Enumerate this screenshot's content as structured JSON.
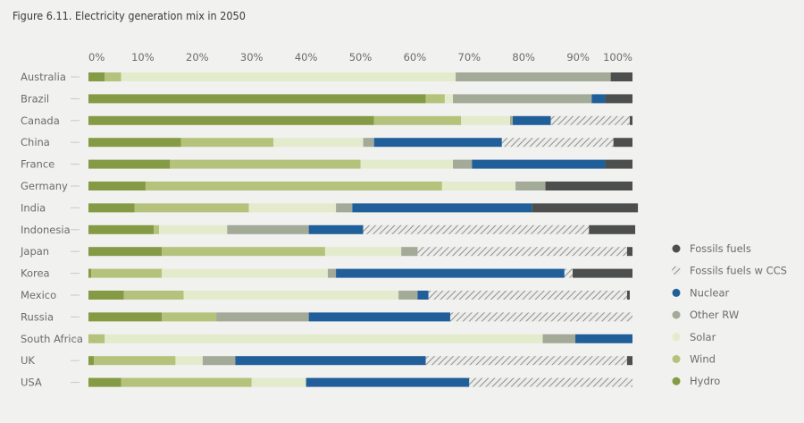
{
  "figure_title": "Figure 6.11. Electricity generation mix in 2050",
  "chart_data": {
    "type": "bar",
    "orientation": "horizontal",
    "stacked": true,
    "title": "Figure 6.11. Electricity generation mix in 2050",
    "xlabel": "",
    "ylabel": "",
    "xlim": [
      0,
      100
    ],
    "x_ticks": [
      "0%",
      "10%",
      "20%",
      "30%",
      "40%",
      "50%",
      "60%",
      "70%",
      "80%",
      "90%",
      "100%"
    ],
    "grid": false,
    "legend_position": "right",
    "categories": [
      "Australia",
      "Brazil",
      "Canada",
      "China",
      "France",
      "Germany",
      "India",
      "Indonesia",
      "Japan",
      "Korea",
      "Mexico",
      "Russia",
      "South Africa",
      "UK",
      "USA"
    ],
    "series": [
      {
        "name": "Hydro",
        "color": "#859a45",
        "values": [
          3,
          62,
          52.5,
          17,
          15,
          10.5,
          8.5,
          12,
          13.5,
          0.5,
          6.5,
          13.5,
          0,
          1,
          6
        ]
      },
      {
        "name": "Wind",
        "color": "#b4c27b",
        "values": [
          3,
          3.5,
          16,
          17,
          35,
          54.5,
          21,
          1,
          30,
          13,
          11,
          10,
          3,
          15,
          24
        ]
      },
      {
        "name": "Solar",
        "color": "#e4ebcd",
        "values": [
          61.5,
          1.5,
          9,
          16.5,
          17,
          13.5,
          16,
          12.5,
          14,
          30.5,
          39.5,
          0,
          80.5,
          5,
          10
        ]
      },
      {
        "name": "Other RW",
        "color": "#a3aa98",
        "values": [
          28.5,
          25.5,
          0.5,
          2,
          3.5,
          5.5,
          3,
          15,
          3,
          1.5,
          3.5,
          17,
          6,
          6,
          0
        ]
      },
      {
        "name": "Nuclear",
        "color": "#215f9a",
        "values": [
          0,
          2.5,
          7,
          23.5,
          24.5,
          0,
          33,
          10,
          0,
          42,
          2,
          26,
          10.5,
          35,
          30
        ]
      },
      {
        "name": "Fossils fuels w CCS",
        "color": "#c8c8c8",
        "values": [
          0,
          0,
          14.5,
          20.5,
          0,
          0,
          0,
          41.5,
          38.5,
          1.5,
          36.5,
          33.5,
          0,
          37,
          30
        ]
      },
      {
        "name": "Fossils fuels",
        "color": "#4d4f4e",
        "values": [
          4,
          5,
          0.5,
          3.5,
          5,
          16,
          19.5,
          8.5,
          1,
          11,
          0.5,
          0,
          0,
          1,
          0
        ]
      }
    ],
    "legend": [
      {
        "name": "Fossils fuels",
        "key": "fossil"
      },
      {
        "name": "Fossils fuels w CCS",
        "key": "ccs"
      },
      {
        "name": "Nuclear",
        "key": "nuclear"
      },
      {
        "name": "Other RW",
        "key": "other"
      },
      {
        "name": "Solar",
        "key": "solar"
      },
      {
        "name": "Wind",
        "key": "wind"
      },
      {
        "name": "Hydro",
        "key": "hydro"
      }
    ]
  }
}
